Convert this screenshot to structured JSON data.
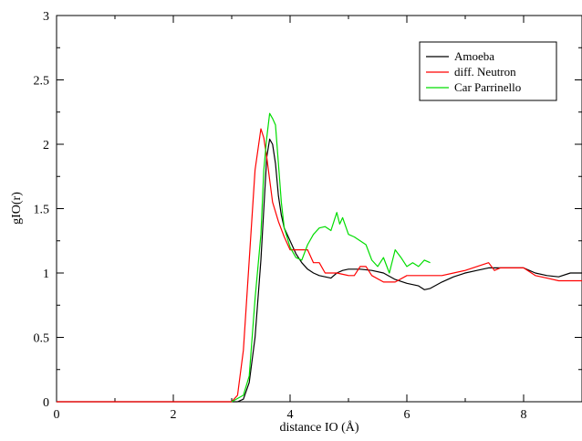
{
  "chart_data": {
    "type": "line",
    "title": "",
    "xlabel": "distance IO (Å)",
    "ylabel": "gIO(r)",
    "xlim": [
      0,
      9
    ],
    "ylim": [
      0,
      3
    ],
    "xticks": [
      0,
      2,
      4,
      6,
      8
    ],
    "xtick_labels": [
      "0",
      "2",
      "4",
      "6",
      "8"
    ],
    "yticks": [
      0,
      0.5,
      1,
      1.5,
      2,
      2.5,
      3
    ],
    "ytick_labels": [
      "0",
      "0.5",
      "1",
      "1.5",
      "2",
      "2.5",
      "3"
    ],
    "grid": false,
    "legend": "top-right",
    "series": [
      {
        "name": "Amoeba",
        "color": "#000000",
        "points": [
          [
            0,
            0
          ],
          [
            3.1,
            0
          ],
          [
            3.2,
            0.02
          ],
          [
            3.3,
            0.15
          ],
          [
            3.4,
            0.5
          ],
          [
            3.5,
            1.1
          ],
          [
            3.55,
            1.5
          ],
          [
            3.6,
            1.9
          ],
          [
            3.65,
            2.04
          ],
          [
            3.7,
            2.0
          ],
          [
            3.75,
            1.85
          ],
          [
            3.8,
            1.6
          ],
          [
            3.85,
            1.45
          ],
          [
            3.9,
            1.35
          ],
          [
            4.0,
            1.25
          ],
          [
            4.1,
            1.15
          ],
          [
            4.2,
            1.08
          ],
          [
            4.3,
            1.03
          ],
          [
            4.4,
            1.0
          ],
          [
            4.5,
            0.98
          ],
          [
            4.6,
            0.97
          ],
          [
            4.7,
            0.96
          ],
          [
            4.8,
            1.0
          ],
          [
            4.9,
            1.02
          ],
          [
            5.0,
            1.03
          ],
          [
            5.2,
            1.03
          ],
          [
            5.4,
            1.02
          ],
          [
            5.6,
            1.0
          ],
          [
            5.8,
            0.95
          ],
          [
            6.0,
            0.92
          ],
          [
            6.2,
            0.9
          ],
          [
            6.3,
            0.87
          ],
          [
            6.4,
            0.88
          ],
          [
            6.6,
            0.93
          ],
          [
            6.8,
            0.97
          ],
          [
            7.0,
            1.0
          ],
          [
            7.2,
            1.02
          ],
          [
            7.4,
            1.04
          ],
          [
            7.6,
            1.04
          ],
          [
            7.8,
            1.04
          ],
          [
            8.0,
            1.04
          ],
          [
            8.2,
            1.0
          ],
          [
            8.4,
            0.98
          ],
          [
            8.6,
            0.97
          ],
          [
            8.8,
            1.0
          ],
          [
            9.0,
            1.0
          ]
        ]
      },
      {
        "name": "diff. Neutron",
        "color": "#ff0000",
        "points": [
          [
            0,
            0
          ],
          [
            3.0,
            0
          ],
          [
            3.1,
            0.05
          ],
          [
            3.2,
            0.4
          ],
          [
            3.3,
            1.1
          ],
          [
            3.4,
            1.8
          ],
          [
            3.5,
            2.12
          ],
          [
            3.55,
            2.05
          ],
          [
            3.6,
            1.9
          ],
          [
            3.7,
            1.55
          ],
          [
            3.8,
            1.4
          ],
          [
            3.9,
            1.28
          ],
          [
            4.0,
            1.18
          ],
          [
            4.3,
            1.18
          ],
          [
            4.4,
            1.08
          ],
          [
            4.5,
            1.08
          ],
          [
            4.6,
            1.0
          ],
          [
            4.8,
            1.0
          ],
          [
            5.0,
            0.98
          ],
          [
            5.1,
            0.98
          ],
          [
            5.2,
            1.05
          ],
          [
            5.3,
            1.05
          ],
          [
            5.4,
            0.98
          ],
          [
            5.6,
            0.93
          ],
          [
            5.8,
            0.93
          ],
          [
            6.0,
            0.98
          ],
          [
            6.4,
            0.98
          ],
          [
            6.6,
            0.98
          ],
          [
            6.8,
            1.0
          ],
          [
            7.0,
            1.02
          ],
          [
            7.2,
            1.05
          ],
          [
            7.4,
            1.08
          ],
          [
            7.5,
            1.02
          ],
          [
            7.6,
            1.04
          ],
          [
            7.8,
            1.04
          ],
          [
            8.0,
            1.04
          ],
          [
            8.2,
            0.98
          ],
          [
            8.4,
            0.96
          ],
          [
            8.6,
            0.94
          ],
          [
            9.0,
            0.94
          ]
        ]
      },
      {
        "name": "Car Parrinello",
        "color": "#00dd00",
        "points": [
          [
            3.0,
            0
          ],
          [
            3.2,
            0.05
          ],
          [
            3.3,
            0.2
          ],
          [
            3.4,
            0.8
          ],
          [
            3.5,
            1.3
          ],
          [
            3.55,
            1.8
          ],
          [
            3.6,
            2.05
          ],
          [
            3.65,
            2.24
          ],
          [
            3.7,
            2.2
          ],
          [
            3.75,
            2.15
          ],
          [
            3.8,
            1.85
          ],
          [
            3.85,
            1.55
          ],
          [
            3.9,
            1.35
          ],
          [
            4.0,
            1.2
          ],
          [
            4.1,
            1.12
          ],
          [
            4.2,
            1.1
          ],
          [
            4.3,
            1.22
          ],
          [
            4.4,
            1.3
          ],
          [
            4.5,
            1.35
          ],
          [
            4.6,
            1.36
          ],
          [
            4.7,
            1.33
          ],
          [
            4.8,
            1.47
          ],
          [
            4.85,
            1.38
          ],
          [
            4.9,
            1.43
          ],
          [
            5.0,
            1.3
          ],
          [
            5.1,
            1.28
          ],
          [
            5.2,
            1.25
          ],
          [
            5.3,
            1.22
          ],
          [
            5.4,
            1.1
          ],
          [
            5.5,
            1.05
          ],
          [
            5.6,
            1.12
          ],
          [
            5.7,
            1.0
          ],
          [
            5.8,
            1.18
          ],
          [
            5.9,
            1.12
          ],
          [
            6.0,
            1.05
          ],
          [
            6.1,
            1.08
          ],
          [
            6.2,
            1.05
          ],
          [
            6.3,
            1.1
          ],
          [
            6.4,
            1.08
          ]
        ]
      }
    ]
  }
}
